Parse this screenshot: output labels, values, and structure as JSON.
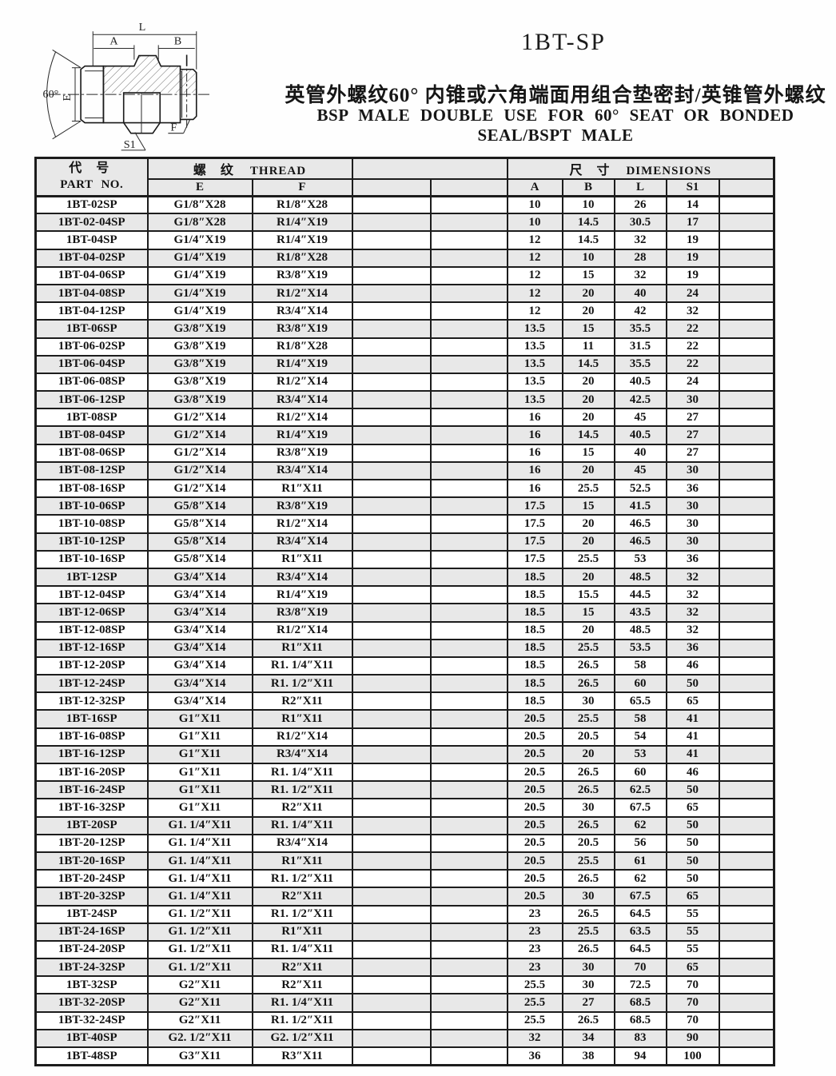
{
  "page": {
    "title": "1BT-SP",
    "subtitle_cn": "英管外螺纹60° 内锥或六角端面用组合垫密封/英锥管外螺纹",
    "subtitle_en": "BSP MALE DOUBLE USE FOR 60° SEAT OR BONDED SEAL/BSPT MALE"
  },
  "colors": {
    "line": "#1c1c1c",
    "row_alt": "#e8e8e8",
    "text": "#141414",
    "background": "#fefefe"
  },
  "diagram": {
    "labels": {
      "length": "L",
      "port_a": "A",
      "port_b": "B",
      "thread_e": "E",
      "cone_angle": "60°",
      "hex": "S1",
      "thread_f": "F"
    }
  },
  "table": {
    "header": {
      "part_no_cn": "代 号",
      "part_no_en": "PART NO.",
      "thread_cn": "螺 纹",
      "thread_en": "THREAD",
      "dims_cn": "尺 寸",
      "dims_en": "DIMENSIONS",
      "col_e": "E",
      "col_f": "F",
      "col_a": "A",
      "col_b": "B",
      "col_l": "L",
      "col_s1": "S1"
    },
    "rows": [
      [
        "1BT-02SP",
        "G1/8″X28",
        "R1/8″X28",
        "10",
        "10",
        "26",
        "14"
      ],
      [
        "1BT-02-04SP",
        "G1/8″X28",
        "R1/4″X19",
        "10",
        "14.5",
        "30.5",
        "17"
      ],
      [
        "1BT-04SP",
        "G1/4″X19",
        "R1/4″X19",
        "12",
        "14.5",
        "32",
        "19"
      ],
      [
        "1BT-04-02SP",
        "G1/4″X19",
        "R1/8″X28",
        "12",
        "10",
        "28",
        "19"
      ],
      [
        "1BT-04-06SP",
        "G1/4″X19",
        "R3/8″X19",
        "12",
        "15",
        "32",
        "19"
      ],
      [
        "1BT-04-08SP",
        "G1/4″X19",
        "R1/2″X14",
        "12",
        "20",
        "40",
        "24"
      ],
      [
        "1BT-04-12SP",
        "G1/4″X19",
        "R3/4″X14",
        "12",
        "20",
        "42",
        "32"
      ],
      [
        "1BT-06SP",
        "G3/8″X19",
        "R3/8″X19",
        "13.5",
        "15",
        "35.5",
        "22"
      ],
      [
        "1BT-06-02SP",
        "G3/8″X19",
        "R1/8″X28",
        "13.5",
        "11",
        "31.5",
        "22"
      ],
      [
        "1BT-06-04SP",
        "G3/8″X19",
        "R1/4″X19",
        "13.5",
        "14.5",
        "35.5",
        "22"
      ],
      [
        "1BT-06-08SP",
        "G3/8″X19",
        "R1/2″X14",
        "13.5",
        "20",
        "40.5",
        "24"
      ],
      [
        "1BT-06-12SP",
        "G3/8″X19",
        "R3/4″X14",
        "13.5",
        "20",
        "42.5",
        "30"
      ],
      [
        "1BT-08SP",
        "G1/2″X14",
        "R1/2″X14",
        "16",
        "20",
        "45",
        "27"
      ],
      [
        "1BT-08-04SP",
        "G1/2″X14",
        "R1/4″X19",
        "16",
        "14.5",
        "40.5",
        "27"
      ],
      [
        "1BT-08-06SP",
        "G1/2″X14",
        "R3/8″X19",
        "16",
        "15",
        "40",
        "27"
      ],
      [
        "1BT-08-12SP",
        "G1/2″X14",
        "R3/4″X14",
        "16",
        "20",
        "45",
        "30"
      ],
      [
        "1BT-08-16SP",
        "G1/2″X14",
        "R1″X11",
        "16",
        "25.5",
        "52.5",
        "36"
      ],
      [
        "1BT-10-06SP",
        "G5/8″X14",
        "R3/8″X19",
        "17.5",
        "15",
        "41.5",
        "30"
      ],
      [
        "1BT-10-08SP",
        "G5/8″X14",
        "R1/2″X14",
        "17.5",
        "20",
        "46.5",
        "30"
      ],
      [
        "1BT-10-12SP",
        "G5/8″X14",
        "R3/4″X14",
        "17.5",
        "20",
        "46.5",
        "30"
      ],
      [
        "1BT-10-16SP",
        "G5/8″X14",
        "R1″X11",
        "17.5",
        "25.5",
        "53",
        "36"
      ],
      [
        "1BT-12SP",
        "G3/4″X14",
        "R3/4″X14",
        "18.5",
        "20",
        "48.5",
        "32"
      ],
      [
        "1BT-12-04SP",
        "G3/4″X14",
        "R1/4″X19",
        "18.5",
        "15.5",
        "44.5",
        "32"
      ],
      [
        "1BT-12-06SP",
        "G3/4″X14",
        "R3/8″X19",
        "18.5",
        "15",
        "43.5",
        "32"
      ],
      [
        "1BT-12-08SP",
        "G3/4″X14",
        "R1/2″X14",
        "18.5",
        "20",
        "48.5",
        "32"
      ],
      [
        "1BT-12-16SP",
        "G3/4″X14",
        "R1″X11",
        "18.5",
        "25.5",
        "53.5",
        "36"
      ],
      [
        "1BT-12-20SP",
        "G3/4″X14",
        "R1. 1/4″X11",
        "18.5",
        "26.5",
        "58",
        "46"
      ],
      [
        "1BT-12-24SP",
        "G3/4″X14",
        "R1. 1/2″X11",
        "18.5",
        "26.5",
        "60",
        "50"
      ],
      [
        "1BT-12-32SP",
        "G3/4″X14",
        "R2″X11",
        "18.5",
        "30",
        "65.5",
        "65"
      ],
      [
        "1BT-16SP",
        "G1″X11",
        "R1″X11",
        "20.5",
        "25.5",
        "58",
        "41"
      ],
      [
        "1BT-16-08SP",
        "G1″X11",
        "R1/2″X14",
        "20.5",
        "20.5",
        "54",
        "41"
      ],
      [
        "1BT-16-12SP",
        "G1″X11",
        "R3/4″X14",
        "20.5",
        "20",
        "53",
        "41"
      ],
      [
        "1BT-16-20SP",
        "G1″X11",
        "R1. 1/4″X11",
        "20.5",
        "26.5",
        "60",
        "46"
      ],
      [
        "1BT-16-24SP",
        "G1″X11",
        "R1. 1/2″X11",
        "20.5",
        "26.5",
        "62.5",
        "50"
      ],
      [
        "1BT-16-32SP",
        "G1″X11",
        "R2″X11",
        "20.5",
        "30",
        "67.5",
        "65"
      ],
      [
        "1BT-20SP",
        "G1. 1/4″X11",
        "R1. 1/4″X11",
        "20.5",
        "26.5",
        "62",
        "50"
      ],
      [
        "1BT-20-12SP",
        "G1. 1/4″X11",
        "R3/4″X14",
        "20.5",
        "20.5",
        "56",
        "50"
      ],
      [
        "1BT-20-16SP",
        "G1. 1/4″X11",
        "R1″X11",
        "20.5",
        "25.5",
        "61",
        "50"
      ],
      [
        "1BT-20-24SP",
        "G1. 1/4″X11",
        "R1. 1/2″X11",
        "20.5",
        "26.5",
        "62",
        "50"
      ],
      [
        "1BT-20-32SP",
        "G1. 1/4″X11",
        "R2″X11",
        "20.5",
        "30",
        "67.5",
        "65"
      ],
      [
        "1BT-24SP",
        "G1. 1/2″X11",
        "R1. 1/2″X11",
        "23",
        "26.5",
        "64.5",
        "55"
      ],
      [
        "1BT-24-16SP",
        "G1. 1/2″X11",
        "R1″X11",
        "23",
        "25.5",
        "63.5",
        "55"
      ],
      [
        "1BT-24-20SP",
        "G1. 1/2″X11",
        "R1. 1/4″X11",
        "23",
        "26.5",
        "64.5",
        "55"
      ],
      [
        "1BT-24-32SP",
        "G1. 1/2″X11",
        "R2″X11",
        "23",
        "30",
        "70",
        "65"
      ],
      [
        "1BT-32SP",
        "G2″X11",
        "R2″X11",
        "25.5",
        "30",
        "72.5",
        "70"
      ],
      [
        "1BT-32-20SP",
        "G2″X11",
        "R1. 1/4″X11",
        "25.5",
        "27",
        "68.5",
        "70"
      ],
      [
        "1BT-32-24SP",
        "G2″X11",
        "R1. 1/2″X11",
        "25.5",
        "26.5",
        "68.5",
        "70"
      ],
      [
        "1BT-40SP",
        "G2. 1/2″X11",
        "G2. 1/2″X11",
        "32",
        "34",
        "83",
        "90"
      ],
      [
        "1BT-48SP",
        "G3″X11",
        "R3″X11",
        "36",
        "38",
        "94",
        "100"
      ]
    ]
  }
}
